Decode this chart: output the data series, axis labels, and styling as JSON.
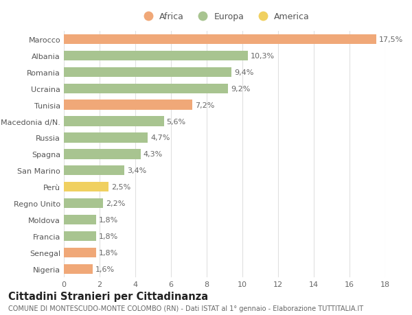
{
  "categories": [
    "Nigeria",
    "Senegal",
    "Francia",
    "Moldova",
    "Regno Unito",
    "Perù",
    "San Marino",
    "Spagna",
    "Russia",
    "Macedonia d/N.",
    "Tunisia",
    "Ucraina",
    "Romania",
    "Albania",
    "Marocco"
  ],
  "values": [
    1.6,
    1.8,
    1.8,
    1.8,
    2.2,
    2.5,
    3.4,
    4.3,
    4.7,
    5.6,
    7.2,
    9.2,
    9.4,
    10.3,
    17.5
  ],
  "colors": [
    "#f0a878",
    "#f0a878",
    "#a8c490",
    "#a8c490",
    "#a8c490",
    "#f0d060",
    "#a8c490",
    "#a8c490",
    "#a8c490",
    "#a8c490",
    "#f0a878",
    "#a8c490",
    "#a8c490",
    "#a8c490",
    "#f0a878"
  ],
  "labels": [
    "1,6%",
    "1,8%",
    "1,8%",
    "1,8%",
    "2,2%",
    "2,5%",
    "3,4%",
    "4,3%",
    "4,7%",
    "5,6%",
    "7,2%",
    "9,2%",
    "9,4%",
    "10,3%",
    "17,5%"
  ],
  "legend": [
    {
      "label": "Africa",
      "color": "#f0a878"
    },
    {
      "label": "Europa",
      "color": "#a8c490"
    },
    {
      "label": "America",
      "color": "#f0d060"
    }
  ],
  "title": "Cittadini Stranieri per Cittadinanza",
  "subtitle": "COMUNE DI MONTESCUDO-MONTE COLOMBO (RN) - Dati ISTAT al 1° gennaio - Elaborazione TUTTITALIA.IT",
  "xlim": [
    0,
    18
  ],
  "xticks": [
    0,
    2,
    4,
    6,
    8,
    10,
    12,
    14,
    16,
    18
  ],
  "background_color": "#ffffff",
  "grid_color": "#e0e0e0",
  "bar_height": 0.6,
  "label_fontsize": 8,
  "tick_fontsize": 8,
  "ytick_fontsize": 8,
  "title_fontsize": 10.5,
  "subtitle_fontsize": 7,
  "legend_fontsize": 9
}
